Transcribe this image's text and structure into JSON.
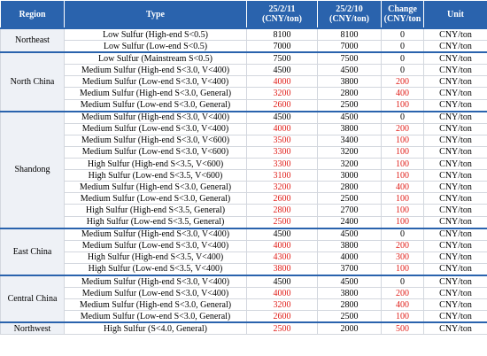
{
  "header": [
    "Region",
    "Type",
    "25/2/11\n(CNY/ton)",
    "25/2/10\n(CNY/ton)",
    "Change\n(CNY/ton",
    "Unit"
  ],
  "groups": [
    {
      "region": "Northeast",
      "rows": [
        [
          "Low Sulfur (High-end S<0.5)",
          8100,
          8100,
          0,
          "CNY/ton"
        ],
        [
          "Low Sulfur (Low-end S<0.5)",
          7000,
          7000,
          0,
          "CNY/ton"
        ]
      ]
    },
    {
      "region": "North China",
      "rows": [
        [
          "Low Sulfur (Mainstream S<0.5)",
          7500,
          7500,
          0,
          "CNY/ton"
        ],
        [
          "Medium Sulfur (High-end S<3.0, V<400)",
          4500,
          4500,
          0,
          "CNY/ton"
        ],
        [
          "Medium Sulfur (Low-end S<3.0, V<400)",
          4000,
          3800,
          200,
          "CNY/ton"
        ],
        [
          "Medium Sulfur (High-end S<3.0, General)",
          3200,
          2800,
          400,
          "CNY/ton"
        ],
        [
          "Medium Sulfur (Low-end S<3.0, General)",
          2600,
          2500,
          100,
          "CNY/ton"
        ]
      ]
    },
    {
      "region": "Shandong",
      "rows": [
        [
          "Medium Sulfur (High-end S<3.0, V<400)",
          4500,
          4500,
          0,
          "CNY/ton"
        ],
        [
          "Medium Sulfur (Low-end S<3.0, V<400)",
          4000,
          3800,
          200,
          "CNY/ton"
        ],
        [
          "Medium Sulfur (High-end S<3.0, V<600)",
          3500,
          3400,
          100,
          "CNY/ton"
        ],
        [
          "Medium Sulfur (Low-end S<3.0, V<600)",
          3300,
          3200,
          100,
          "CNY/ton"
        ],
        [
          "High Sulfur (High-end S<3.5, V<600)",
          3300,
          3200,
          100,
          "CNY/ton"
        ],
        [
          "High Sulfur (Low-end S<3.5, V<600)",
          3100,
          3000,
          100,
          "CNY/ton"
        ],
        [
          "Medium Sulfur (High-end S<3.0, General)",
          3200,
          2800,
          400,
          "CNY/ton"
        ],
        [
          "Medium Sulfur (Low-end S<3.0, General)",
          2600,
          2500,
          100,
          "CNY/ton"
        ],
        [
          "High Sulfur (High-end S<3.5, General)",
          2800,
          2700,
          100,
          "CNY/ton"
        ],
        [
          "High Sulfur (Low-end S<3.5, General)",
          2500,
          2400,
          100,
          "CNY/ton"
        ]
      ]
    },
    {
      "region": "East China",
      "rows": [
        [
          "Medium Sulfur (High-end S<3.0, V<400)",
          4500,
          4500,
          0,
          "CNY/ton"
        ],
        [
          "Medium Sulfur (Low-end S<3.0, V<400)",
          4000,
          3800,
          200,
          "CNY/ton"
        ],
        [
          "High Sulfur (High-end S<3.5, V<400)",
          4300,
          4000,
          300,
          "CNY/ton"
        ],
        [
          "High Sulfur (Low-end S<3.5, V<400)",
          3800,
          3700,
          100,
          "CNY/ton"
        ]
      ]
    },
    {
      "region": "Central China",
      "rows": [
        [
          "Medium Sulfur (High-end S<3.0, V<400)",
          4500,
          4500,
          0,
          "CNY/ton"
        ],
        [
          "Medium Sulfur (Low-end S<3.0, V<400)",
          4000,
          3800,
          200,
          "CNY/ton"
        ],
        [
          "Medium Sulfur (High-end S<3.0, General)",
          3200,
          2800,
          400,
          "CNY/ton"
        ],
        [
          "Medium Sulfur (Low-end S<3.0, General)",
          2600,
          2500,
          100,
          "CNY/ton"
        ]
      ]
    },
    {
      "region": "Northwest",
      "rows": [
        [
          "High Sulfur (S<4.0, General)",
          2500,
          2000,
          500,
          "CNY/ton"
        ]
      ]
    }
  ]
}
